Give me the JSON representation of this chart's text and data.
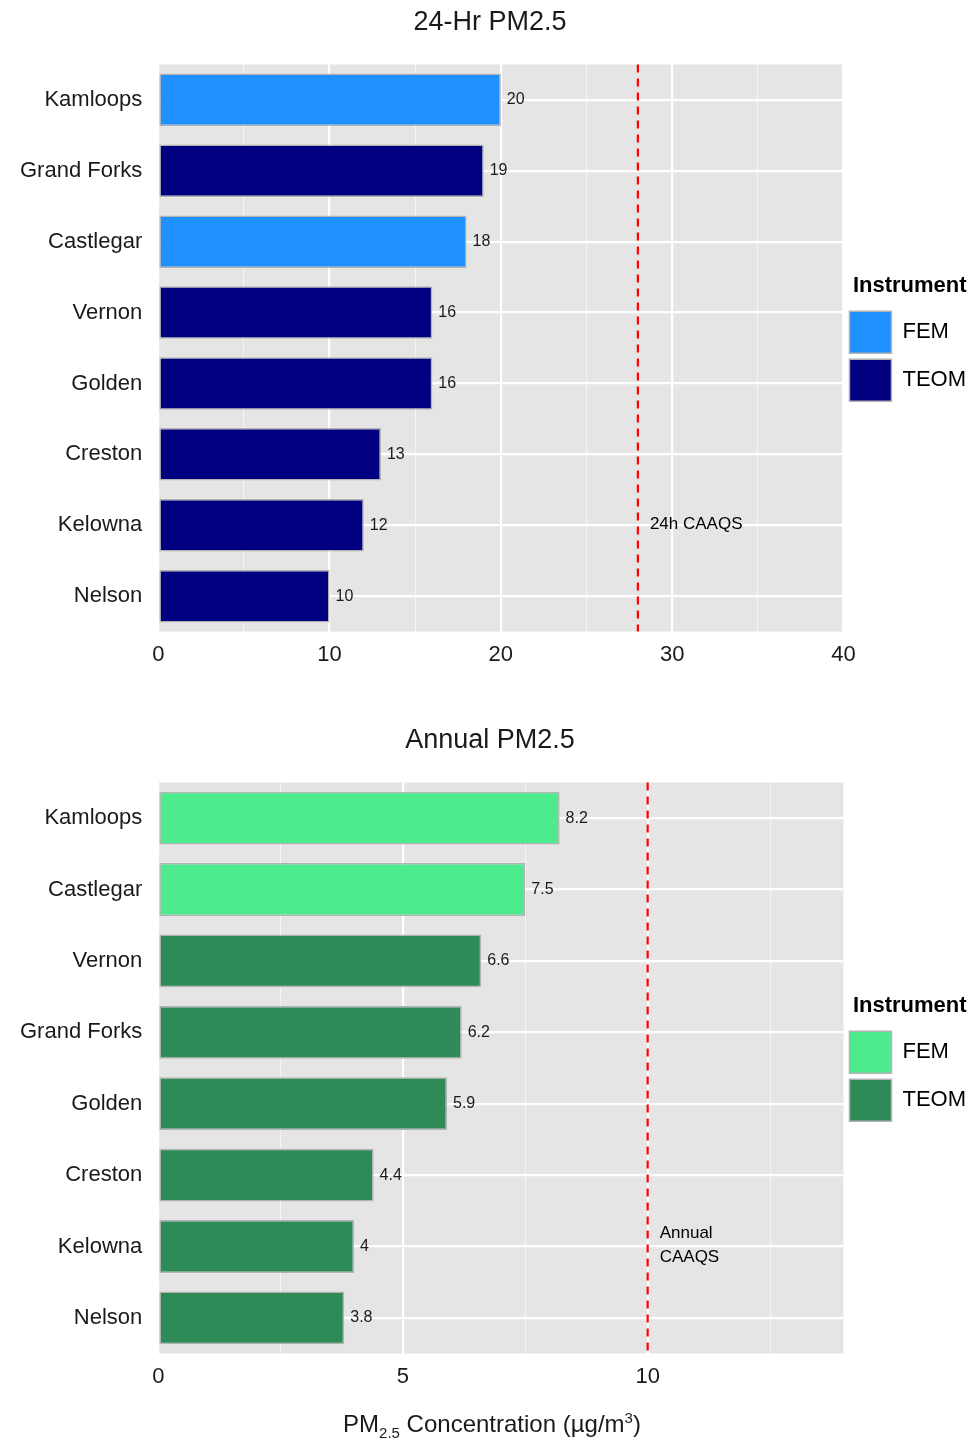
{
  "chart_data": [
    {
      "type": "bar",
      "orientation": "horizontal",
      "stacked": true,
      "title": "24-Hr PM2.5",
      "legend_title": "Instrument",
      "legend": "right",
      "grid": true,
      "data_labels": true,
      "categories": [
        "Kamloops",
        "Grand Forks",
        "Castlegar",
        "Vernon",
        "Golden",
        "Creston",
        "Kelowna",
        "Nelson"
      ],
      "series": [
        {
          "name": "FEM",
          "color": "#1e90ff",
          "values": [
            20,
            null,
            18,
            null,
            null,
            null,
            null,
            null
          ]
        },
        {
          "name": "TEOM",
          "color": "#000080",
          "values": [
            null,
            19,
            null,
            16,
            16,
            13,
            12,
            10
          ]
        }
      ],
      "xlim": [
        0,
        40
      ],
      "xticks": [
        0,
        {
          "value": 5,
          "label": null
        },
        10,
        {
          "value": 15,
          "label": null
        },
        20,
        {
          "value": 25,
          "label": null
        },
        30,
        {
          "value": 35,
          "label": null
        },
        40
      ],
      "ref_lines": [
        {
          "axis": "x",
          "value": 28,
          "label": "24h CAAQS",
          "color": "#ff0000",
          "line_style": "dashed"
        }
      ]
    },
    {
      "type": "bar",
      "orientation": "horizontal",
      "stacked": true,
      "title": "Annual PM2.5",
      "legend_title": "Instrument",
      "legend": "right",
      "grid": true,
      "data_labels": true,
      "xlabel": "PM$_{2.5}$ Concentration (µg/m$^{3}$)",
      "categories": [
        "Kamloops",
        "Castlegar",
        "Vernon",
        "Grand Forks",
        "Golden",
        "Creston",
        "Kelowna",
        "Nelson"
      ],
      "series": [
        {
          "name": "FEM",
          "color": "#4eea8e",
          "values": [
            8.2,
            7.5,
            null,
            null,
            null,
            null,
            null,
            null
          ]
        },
        {
          "name": "TEOM",
          "color": "#2e8b57",
          "values": [
            null,
            null,
            6.6,
            6.2,
            5.9,
            4.4,
            4,
            3.8
          ]
        }
      ],
      "xlim": [
        0,
        14
      ],
      "xticks": [
        0,
        {
          "value": 2.5,
          "label": null
        },
        5,
        {
          "value": 7.5,
          "label": null
        },
        10,
        {
          "value": 12.5,
          "label": null
        }
      ],
      "ref_lines": [
        {
          "axis": "x",
          "value": 10,
          "label": "Annual CAAQS",
          "color": "#ff0000",
          "line_style": "dashed"
        }
      ]
    }
  ]
}
